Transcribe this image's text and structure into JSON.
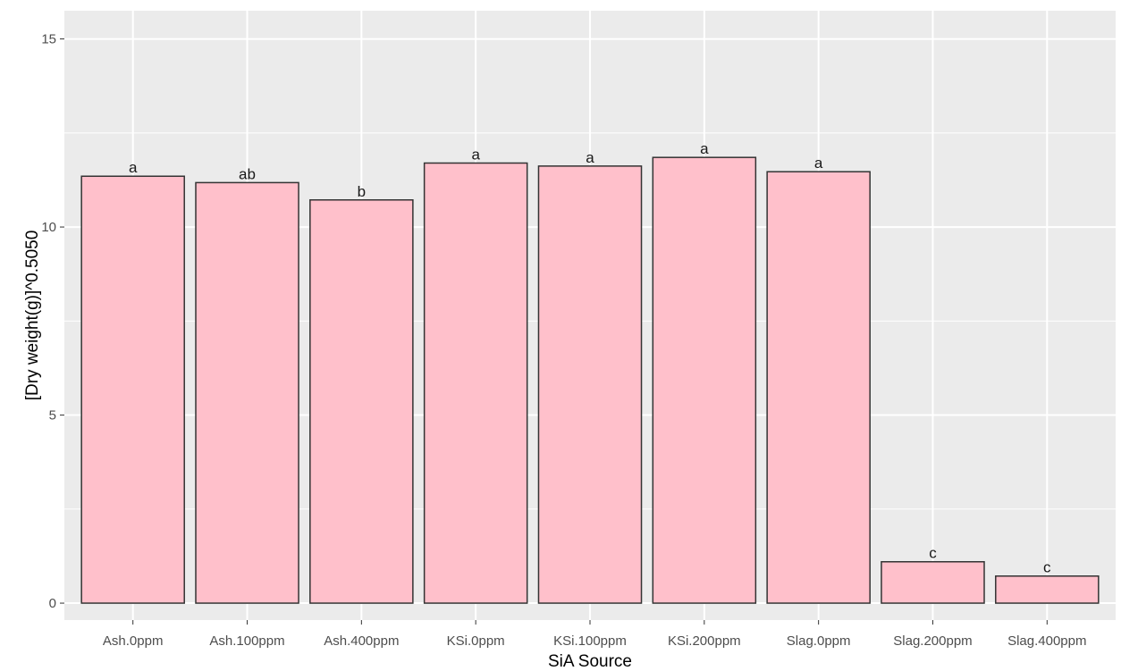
{
  "chart_data": {
    "type": "bar",
    "title": "",
    "xlabel": "SiA Source",
    "ylabel": "[Dry weight(g)]^0.5050",
    "categories": [
      "Ash.0ppm",
      "Ash.100ppm",
      "Ash.400ppm",
      "KSi.0ppm",
      "KSi.100ppm",
      "KSi.200ppm",
      "Slag.0ppm",
      "Slag.200ppm",
      "Slag.400ppm"
    ],
    "values": [
      11.35,
      11.18,
      10.72,
      11.7,
      11.62,
      11.85,
      11.47,
      1.1,
      0.72
    ],
    "bar_labels": [
      "a",
      "ab",
      "b",
      "a",
      "a",
      "a",
      "a",
      "c",
      "c"
    ],
    "ylim": [
      -0.45,
      15.75
    ],
    "yticks": [
      0,
      5,
      10,
      15
    ],
    "grid": true,
    "legend": "none",
    "colors": {
      "bar_fill": "#ffc0cb",
      "bar_stroke": "#333333",
      "panel": "#ebebeb",
      "gridline": "#ffffff"
    }
  }
}
